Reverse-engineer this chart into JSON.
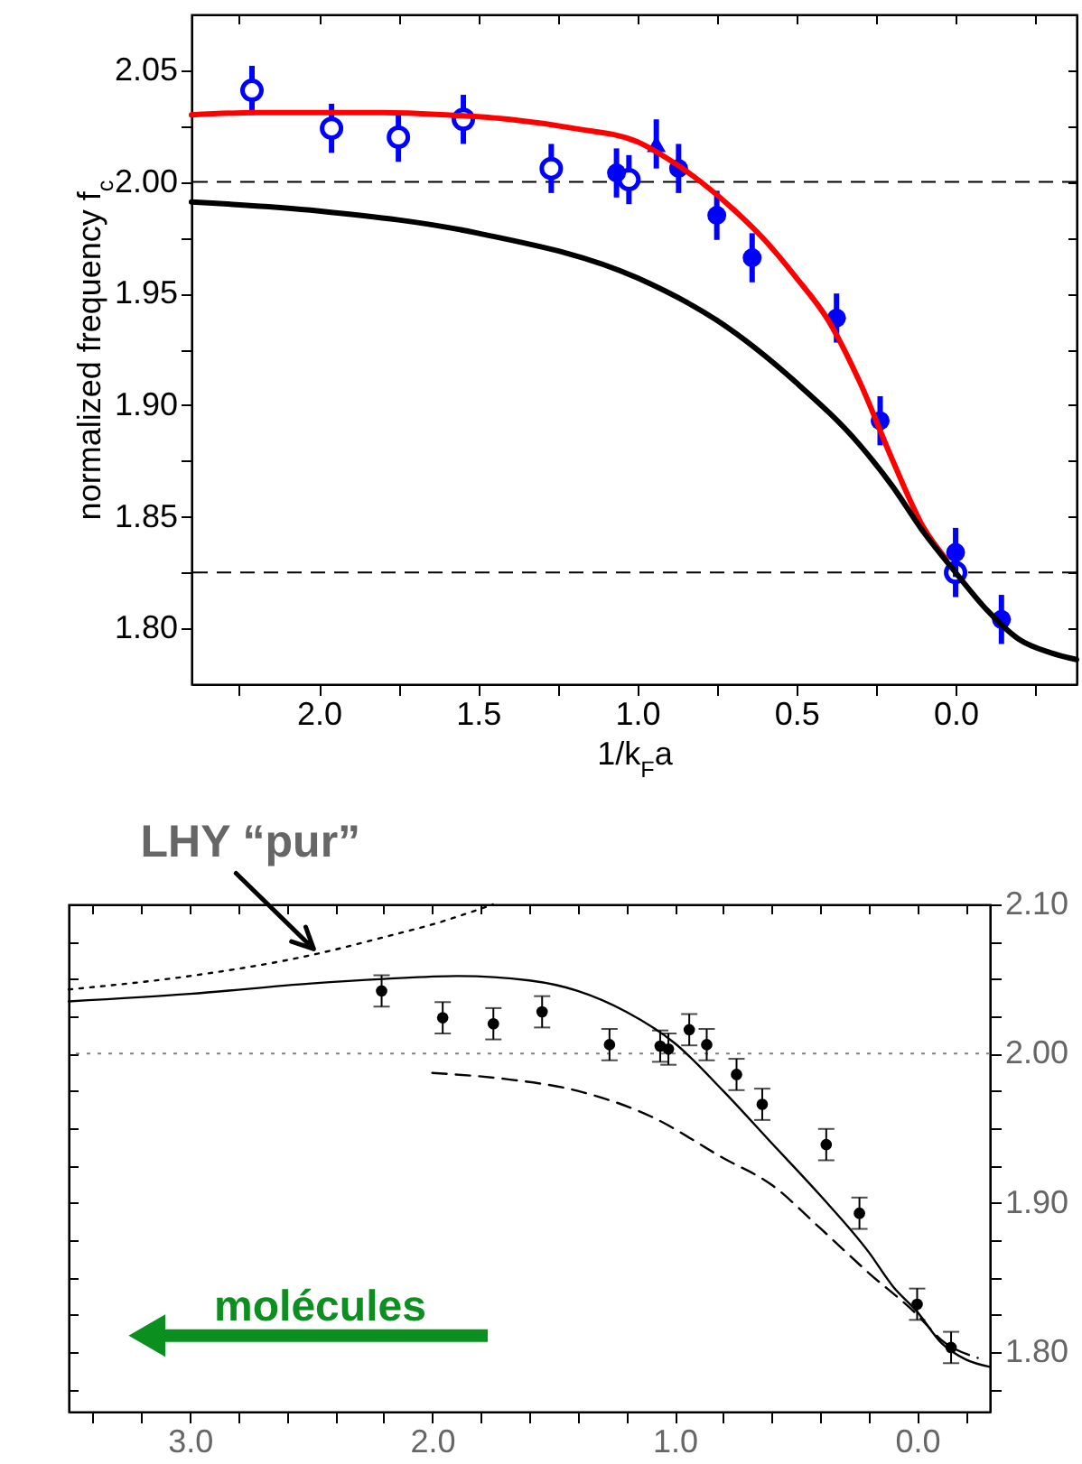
{
  "chart_data": [
    {
      "type": "scatter",
      "xlabel": "1/k$_{F}$a",
      "ylabel": "normalized frequency f$_{c}$",
      "xlim": [
        2.4,
        -0.38
      ],
      "ylim": [
        1.775,
        2.075
      ],
      "xticks": [
        {
          "value": 2.25,
          "label": null
        },
        {
          "value": 2,
          "label": "2.0"
        },
        {
          "value": 1.75,
          "label": null
        },
        1.5,
        {
          "value": 1.25,
          "label": null
        },
        {
          "value": 1,
          "label": "1.0"
        },
        {
          "value": 0.75,
          "label": null
        },
        0.5,
        {
          "value": 0.25,
          "label": null
        },
        {
          "value": 0,
          "label": "0.0"
        },
        {
          "value": -0.25,
          "label": null
        }
      ],
      "yticks": [
        {
          "value": 1.8,
          "label": "1.80"
        },
        {
          "value": 1.825,
          "label": null
        },
        1.85,
        {
          "value": 1.875,
          "label": null
        },
        {
          "value": 1.9,
          "label": "1.90"
        },
        {
          "value": 1.925,
          "label": null
        },
        1.95,
        {
          "value": 1.975,
          "label": null
        },
        {
          "value": 2,
          "label": "2.00"
        },
        {
          "value": 2.025,
          "label": null
        },
        2.05
      ],
      "series": [
        {
          "type": "scatter",
          "marker": "circle",
          "color": "#0000ff",
          "x": [
            2.21,
            1.96,
            1.75,
            1.546,
            1.27,
            1.026,
            0
          ],
          "values": [
            2.041,
            2.024,
            2.02,
            2.028,
            2.006,
            2.001,
            1.825
          ],
          "errors": [
            0.011,
            0.011,
            0.011,
            0.011,
            0.011,
            0.011,
            0.011
          ]
        },
        {
          "type": "scatter",
          "marker": "circle",
          "color": "#0000ff",
          "x": [
            1.065,
            0.87,
            0.75,
            0.639,
            0.374,
            0.237,
            0,
            -0.144
          ],
          "values": [
            2.004,
            2.006,
            1.985,
            1.966,
            1.939,
            1.893,
            1.834,
            1.804
          ],
          "errors": [
            0.011,
            0.011,
            0.011,
            0.011,
            0.011,
            0.011,
            0.011,
            0.011
          ]
        },
        {
          "type": "scatter",
          "marker": "triangle",
          "color": "#0000ff",
          "x": [
            0.94
          ],
          "values": [
            2.017
          ],
          "errors": [
            0.011
          ]
        },
        {
          "type": "line",
          "color": "#ff0000",
          "x": [
            2.4,
            2.2,
            2.0,
            1.8,
            1.6,
            1.4,
            1.2,
            1.0,
            0.9,
            0.8,
            0.7,
            0.6,
            0.5,
            0.4,
            0.3,
            0.2,
            0.1,
            0.03
          ],
          "values": [
            2.03,
            2.031,
            2.031,
            2.031,
            2.03,
            2.028,
            2.024,
            2.018,
            2.01,
            2.0,
            1.988,
            1.974,
            1.957,
            1.938,
            1.91,
            1.876,
            1.845,
            1.831
          ]
        },
        {
          "type": "line",
          "color": "#000000",
          "x": [
            2.4,
            2.0,
            1.5,
            1.0,
            0.75,
            0.5,
            0.3,
            0.2,
            0.1,
            0.0,
            -0.1,
            -0.2,
            -0.3,
            -0.38
          ],
          "values": [
            1.991,
            1.987,
            1.977,
            1.957,
            1.938,
            1.91,
            1.882,
            1.864,
            1.843,
            1.825,
            1.808,
            1.795,
            1.789,
            1.786
          ]
        }
      ],
      "ref_lines": [
        {
          "axis": "y",
          "value": 2.0,
          "line_style": "dashed",
          "color": "#000000"
        },
        {
          "axis": "y",
          "value": 1.825,
          "line_style": "dashed",
          "color": "#000000"
        }
      ]
    },
    {
      "type": "scatter",
      "xlim": [
        3.5,
        -0.3
      ],
      "y2lim": [
        1.76,
        2.1
      ],
      "xticks": [
        {
          "value": 3.4,
          "label": null
        },
        {
          "value": 3.2,
          "label": null
        },
        {
          "value": 3,
          "label": "3.0"
        },
        {
          "value": 2.8,
          "label": null
        },
        {
          "value": 2.6,
          "label": null
        },
        {
          "value": 2.4,
          "label": null
        },
        {
          "value": 2.2,
          "label": null
        },
        {
          "value": 2,
          "label": "2.0"
        },
        {
          "value": 1.8,
          "label": null
        },
        {
          "value": 1.6,
          "label": null
        },
        {
          "value": 1.4,
          "label": null
        },
        {
          "value": 1.2,
          "label": null
        },
        {
          "value": 1,
          "label": "1.0"
        },
        {
          "value": 0.8,
          "label": null
        },
        {
          "value": 0.6,
          "label": null
        },
        {
          "value": 0.4,
          "label": null
        },
        {
          "value": 0.2,
          "label": null
        },
        {
          "value": 0,
          "label": "0.0"
        },
        {
          "value": -0.2,
          "label": null
        }
      ],
      "y2ticks": [
        {
          "value": 1.775,
          "label": null
        },
        {
          "value": 1.8,
          "label": "1.80"
        },
        {
          "value": 1.825,
          "label": null
        },
        {
          "value": 1.85,
          "label": null
        },
        {
          "value": 1.875,
          "label": null
        },
        {
          "value": 1.9,
          "label": "1.90"
        },
        {
          "value": 1.925,
          "label": null
        },
        {
          "value": 1.95,
          "label": null
        },
        {
          "value": 1.975,
          "label": null
        },
        {
          "value": 2,
          "label": "2.00"
        },
        {
          "value": 2.025,
          "label": null
        },
        {
          "value": 2.05,
          "label": null
        },
        {
          "value": 2.075,
          "label": null
        },
        {
          "value": 2.1,
          "label": "2.10"
        }
      ],
      "series": [
        {
          "type": "scatter",
          "marker": "circle",
          "color": "#000000",
          "axis": "y2",
          "x": [
            2.209,
            1.957,
            1.748,
            1.547,
            1.269,
            1.06,
            1.026,
            0.94,
            0.868,
            0.745,
            0.639,
            0.375,
            0.238,
            0,
            -0.14
          ],
          "values": [
            2.042,
            2.024,
            2.02,
            2.028,
            2.006,
            2.005,
            2.003,
            2.016,
            2.006,
            1.986,
            1.966,
            1.939,
            1.893,
            1.832,
            1.803
          ],
          "errors": [
            0.0105,
            0.0105,
            0.0105,
            0.0105,
            0.0105,
            0.0105,
            0.0105,
            0.0105,
            0.0105,
            0.0105,
            0.0105,
            0.0105,
            0.0105,
            0.0105,
            0.0105
          ]
        },
        {
          "type": "line",
          "color": "#000000",
          "line_style": "solid",
          "axis": "y2",
          "x": [
            3.5,
            3.0,
            2.5,
            2.2,
            1.9,
            1.6,
            1.4,
            1.2,
            1.0,
            0.8,
            0.6,
            0.4,
            0.2,
            0.1,
            0.0,
            -0.1,
            -0.2,
            -0.3
          ],
          "values": [
            2.035,
            2.04,
            2.047,
            2.05,
            2.052,
            2.049,
            2.042,
            2.028,
            2.007,
            1.975,
            1.94,
            1.905,
            1.867,
            1.844,
            1.827,
            1.806,
            1.795,
            1.79
          ]
        },
        {
          "type": "line",
          "color": "#000000",
          "line_style": "dashed",
          "axis": "y2",
          "x": [
            2.0,
            1.7,
            1.4,
            1.1,
            0.8,
            0.6,
            0.4,
            0.2,
            0.0,
            -0.1,
            -0.25
          ],
          "values": [
            1.987,
            1.983,
            1.975,
            1.958,
            1.93,
            1.912,
            1.883,
            1.853,
            1.825,
            1.808,
            1.796
          ]
        },
        {
          "type": "line",
          "color": "#000000",
          "line_style": "dotted",
          "axis": "y2",
          "x": [
            3.5,
            3.0,
            2.5,
            2.2,
            1.95,
            1.75
          ],
          "values": [
            2.043,
            2.052,
            2.066,
            2.078,
            2.089,
            2.1
          ]
        }
      ],
      "ref_lines": [
        {
          "axis": "y2",
          "value": 2.0,
          "line_style": "dotted",
          "color": "#808080"
        }
      ],
      "annotations": [
        "LHY “pur”",
        "molécules"
      ]
    }
  ]
}
